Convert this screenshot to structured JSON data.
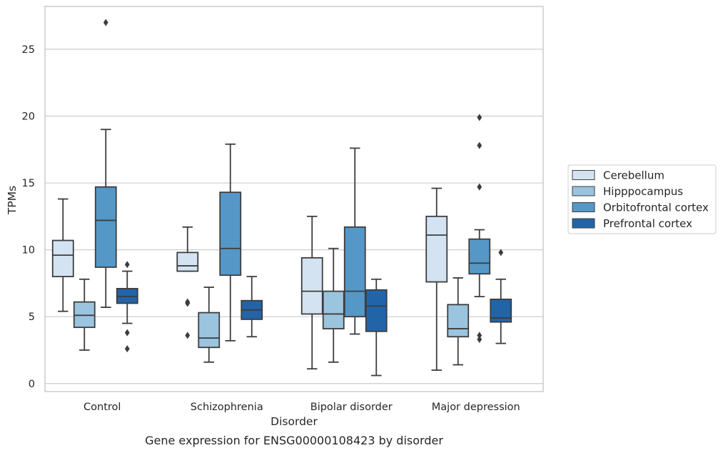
{
  "chart_data": {
    "type": "box",
    "title": "",
    "caption": "Gene expression for ENSG00000108423 by disorder",
    "xlabel": "Disorder",
    "ylabel": "TPMs",
    "ylim": [
      -0.6,
      28.2
    ],
    "yticks": [
      0,
      5,
      10,
      15,
      20,
      25
    ],
    "grid": "horizontal",
    "legend_placement": "right",
    "categories": [
      "Control",
      "Schizophrenia",
      "Bipolar disorder",
      "Major depression"
    ],
    "series": [
      {
        "name": "Cerebellum",
        "color": "#d4e3f2",
        "boxes": [
          {
            "whislo": 5.4,
            "q1": 8.0,
            "med": 9.6,
            "q3": 10.7,
            "whishi": 13.8,
            "fliers": []
          },
          {
            "whislo": 8.4,
            "q1": 8.4,
            "med": 8.8,
            "q3": 9.8,
            "whishi": 11.7,
            "fliers": [
              6.1,
              6.0,
              3.6
            ]
          },
          {
            "whislo": 1.1,
            "q1": 5.2,
            "med": 6.9,
            "q3": 9.4,
            "whishi": 12.5,
            "fliers": []
          },
          {
            "whislo": 1.0,
            "q1": 7.6,
            "med": 11.1,
            "q3": 12.5,
            "whishi": 14.6,
            "fliers": []
          }
        ]
      },
      {
        "name": "Hipppocampus",
        "color": "#9bc4de",
        "boxes": [
          {
            "whislo": 2.5,
            "q1": 4.2,
            "med": 5.1,
            "q3": 6.1,
            "whishi": 7.8,
            "fliers": []
          },
          {
            "whislo": 1.6,
            "q1": 2.7,
            "med": 3.4,
            "q3": 5.3,
            "whishi": 7.2,
            "fliers": []
          },
          {
            "whislo": 1.6,
            "q1": 4.1,
            "med": 5.2,
            "q3": 6.9,
            "whishi": 10.1,
            "fliers": []
          },
          {
            "whislo": 1.4,
            "q1": 3.5,
            "med": 4.1,
            "q3": 5.9,
            "whishi": 7.9,
            "fliers": []
          }
        ]
      },
      {
        "name": "Orbitofrontal cortex",
        "color": "#5598c8",
        "boxes": [
          {
            "whislo": 5.7,
            "q1": 8.7,
            "med": 12.2,
            "q3": 14.7,
            "whishi": 19.0,
            "fliers": [
              27.0
            ]
          },
          {
            "whislo": 3.2,
            "q1": 8.1,
            "med": 10.1,
            "q3": 14.3,
            "whishi": 17.9,
            "fliers": []
          },
          {
            "whislo": 3.7,
            "q1": 5.0,
            "med": 6.9,
            "q3": 11.7,
            "whishi": 17.6,
            "fliers": []
          },
          {
            "whislo": 6.5,
            "q1": 8.2,
            "med": 9.0,
            "q3": 10.8,
            "whishi": 11.5,
            "fliers": [
              19.9,
              17.8,
              14.7,
              3.6,
              3.3
            ]
          }
        ]
      },
      {
        "name": "Prefrontal cortex",
        "color": "#2264a8",
        "boxes": [
          {
            "whislo": 4.5,
            "q1": 6.0,
            "med": 6.5,
            "q3": 7.1,
            "whishi": 8.4,
            "fliers": [
              8.9,
              3.8,
              2.6
            ]
          },
          {
            "whislo": 3.5,
            "q1": 4.8,
            "med": 5.5,
            "q3": 6.2,
            "whishi": 8.0,
            "fliers": []
          },
          {
            "whislo": 0.6,
            "q1": 3.9,
            "med": 5.8,
            "q3": 7.0,
            "whishi": 7.8,
            "fliers": []
          },
          {
            "whislo": 3.0,
            "q1": 4.6,
            "med": 4.9,
            "q3": 6.3,
            "whishi": 7.8,
            "fliers": [
              9.8
            ]
          }
        ]
      }
    ]
  }
}
